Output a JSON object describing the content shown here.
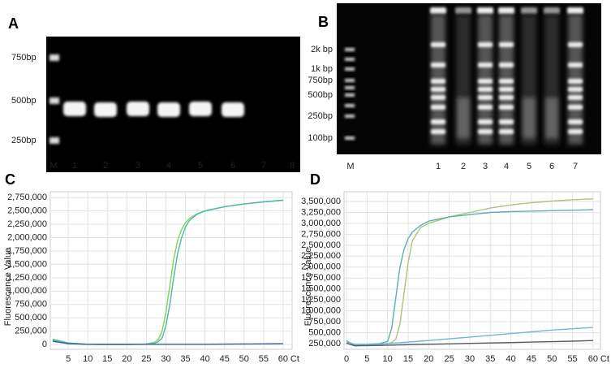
{
  "figure": {
    "gel_a": {
      "label": "A",
      "size_labels": [
        "750bp",
        "500bp",
        "250bp"
      ],
      "lane_labels": [
        "M",
        "1",
        "2",
        "3",
        "4",
        "5",
        "6",
        "7",
        "8"
      ]
    },
    "gel_b": {
      "label": "B",
      "size_labels": [
        "2k bp",
        "1k bp",
        "750bp",
        "500bp",
        "250bp",
        "100bp"
      ],
      "lane_labels": [
        "M",
        "1",
        "2",
        "3",
        "4",
        "5",
        "6",
        "7"
      ]
    }
  },
  "chart_data": [
    {
      "type": "line",
      "panel_label": "C",
      "ylabel": "Fluorescence Value",
      "xlabel": "Ct",
      "grid": true,
      "xlim": [
        0.4,
        62.3
      ],
      "ylim": [
        -90000,
        2860000
      ],
      "xticks": [
        5,
        10,
        15,
        20,
        25,
        30,
        35,
        40,
        45,
        50,
        55,
        60
      ],
      "yticks": [
        0,
        {
          "value": 250000,
          "label": "250,000"
        },
        {
          "value": 500000,
          "label": "500,000"
        },
        {
          "value": 750000,
          "label": "750,000"
        },
        {
          "value": 1000000,
          "label": "1,000,000"
        },
        {
          "value": 1250000,
          "label": "1,250,000"
        },
        {
          "value": 1500000,
          "label": "1,500,000"
        },
        {
          "value": 1750000,
          "label": "1,750,000"
        },
        {
          "value": 2000000,
          "label": "2,000,000"
        },
        {
          "value": 2250000,
          "label": "2,250,000"
        },
        {
          "value": 2500000,
          "label": "2,500,000"
        },
        {
          "value": 2750000,
          "label": "2,750,000"
        }
      ],
      "x": [
        1,
        5,
        10,
        15,
        20,
        25,
        27,
        28,
        29,
        30,
        31,
        32,
        33,
        34,
        35,
        36,
        38,
        40,
        45,
        50,
        55,
        60
      ],
      "series": [
        {
          "color": "#7ed35a",
          "values": [
            80000,
            20000,
            5000,
            0,
            0,
            10000,
            40000,
            90000,
            250000,
            600000,
            1100000,
            1600000,
            1950000,
            2150000,
            2280000,
            2360000,
            2450000,
            2500000,
            2580000,
            2630000,
            2670000,
            2700000
          ]
        },
        {
          "color": "#4bb8b0",
          "values": [
            100000,
            30000,
            5000,
            0,
            0,
            5000,
            20000,
            50000,
            120000,
            350000,
            750000,
            1250000,
            1700000,
            2000000,
            2200000,
            2320000,
            2440000,
            2500000,
            2580000,
            2630000,
            2670000,
            2700000
          ]
        },
        {
          "color": "#2f5f9e",
          "values": [
            60000,
            15000,
            5000,
            5000,
            5000,
            5000,
            5000,
            5000,
            5000,
            5000,
            5000,
            5000,
            5000,
            5000,
            5000,
            5000,
            5000,
            5000,
            8000,
            10000,
            12000,
            15000
          ]
        }
      ]
    },
    {
      "type": "line",
      "panel_label": "D",
      "ylabel": "Fluorescence Value",
      "xlabel": "Ct",
      "grid": true,
      "xlim": [
        -0.6,
        61.8
      ],
      "ylim": [
        120000,
        3723000
      ],
      "xticks": [
        0,
        5,
        10,
        15,
        20,
        25,
        30,
        35,
        40,
        45,
        50,
        55,
        60
      ],
      "yticks": [
        {
          "value": 250000,
          "label": "250,000"
        },
        {
          "value": 500000,
          "label": "500,000"
        },
        {
          "value": 750000,
          "label": "750,000"
        },
        {
          "value": 1000000,
          "label": "1,000,000"
        },
        {
          "value": 1250000,
          "label": "1,250,000"
        },
        {
          "value": 1500000,
          "label": "1,500,000"
        },
        {
          "value": 1750000,
          "label": "1,750,000"
        },
        {
          "value": 2000000,
          "label": "2,000,000"
        },
        {
          "value": 2250000,
          "label": "2,250,000"
        },
        {
          "value": 2500000,
          "label": "2,500,000"
        },
        {
          "value": 2750000,
          "label": "2,750,000"
        },
        {
          "value": 3000000,
          "label": "3,000,000"
        },
        {
          "value": 3250000,
          "label": "3,250,000"
        },
        {
          "value": 3500000,
          "label": "3,500,000"
        }
      ],
      "x": [
        0,
        2,
        5,
        8,
        10,
        11,
        12,
        13,
        14,
        15,
        16,
        18,
        20,
        25,
        30,
        35,
        40,
        45,
        50,
        55,
        60
      ],
      "series": [
        {
          "color": "#a9c57a",
          "values": [
            280000,
            220000,
            220000,
            230000,
            250000,
            280000,
            350000,
            700000,
            1400000,
            2100000,
            2600000,
            2900000,
            3000000,
            3150000,
            3250000,
            3350000,
            3420000,
            3470000,
            3510000,
            3540000,
            3560000
          ]
        },
        {
          "color": "#5ab0b8",
          "values": [
            300000,
            230000,
            230000,
            250000,
            300000,
            600000,
            1300000,
            2000000,
            2400000,
            2650000,
            2800000,
            2950000,
            3050000,
            3150000,
            3200000,
            3250000,
            3270000,
            3280000,
            3290000,
            3300000,
            3310000
          ]
        },
        {
          "color": "#6fb6d8",
          "values": [
            320000,
            200000,
            215000,
            235000,
            250000,
            257000,
            264000,
            271000,
            278000,
            285000,
            292000,
            306000,
            320000,
            360000,
            400000,
            440000,
            480000,
            520000,
            560000,
            590000,
            620000
          ]
        },
        {
          "color": "#555a66",
          "values": [
            260000,
            200000,
            205000,
            210000,
            215000,
            217000,
            219000,
            221000,
            223000,
            225000,
            227000,
            230000,
            235000,
            245000,
            255000,
            265000,
            275000,
            285000,
            295000,
            305000,
            320000
          ]
        }
      ]
    }
  ]
}
